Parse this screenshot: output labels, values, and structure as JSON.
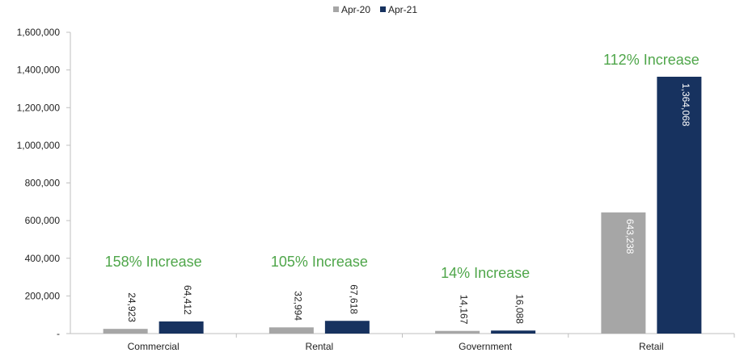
{
  "chart_data": {
    "type": "bar",
    "categories": [
      "Commercial",
      "Rental",
      "Government",
      "Retail"
    ],
    "series": [
      {
        "name": "Apr-20",
        "values": [
          24923,
          32994,
          14167,
          643238
        ],
        "labels": [
          "24,923",
          "32,994",
          "14,167",
          "643,238"
        ]
      },
      {
        "name": "Apr-21",
        "values": [
          64412,
          67618,
          16088,
          1364068
        ],
        "labels": [
          "64,412",
          "67,618",
          "16,088",
          "1,364,068"
        ]
      }
    ],
    "annotations": [
      "158% Increase",
      "105% Increase",
      "14% Increase",
      "112% Increase"
    ],
    "ylim": [
      0,
      1600000
    ],
    "yticks": [
      0,
      200000,
      400000,
      600000,
      800000,
      1000000,
      1200000,
      1400000,
      1600000
    ],
    "ytick_labels": [
      "-",
      "200,000",
      "400,000",
      "600,000",
      "800,000",
      "1,000,000",
      "1,200,000",
      "1,400,000",
      "1,600,000"
    ],
    "legend_position": "top-center",
    "grid": false,
    "title": "",
    "xlabel": "",
    "ylabel": "",
    "colors": {
      "Apr-20": "#a6a6a6",
      "Apr-21": "#17325f",
      "annotation": "#4fa64a",
      "axis": "#bfbfbf",
      "inside_label": "#ffffff",
      "outside_label": "#222222"
    }
  }
}
